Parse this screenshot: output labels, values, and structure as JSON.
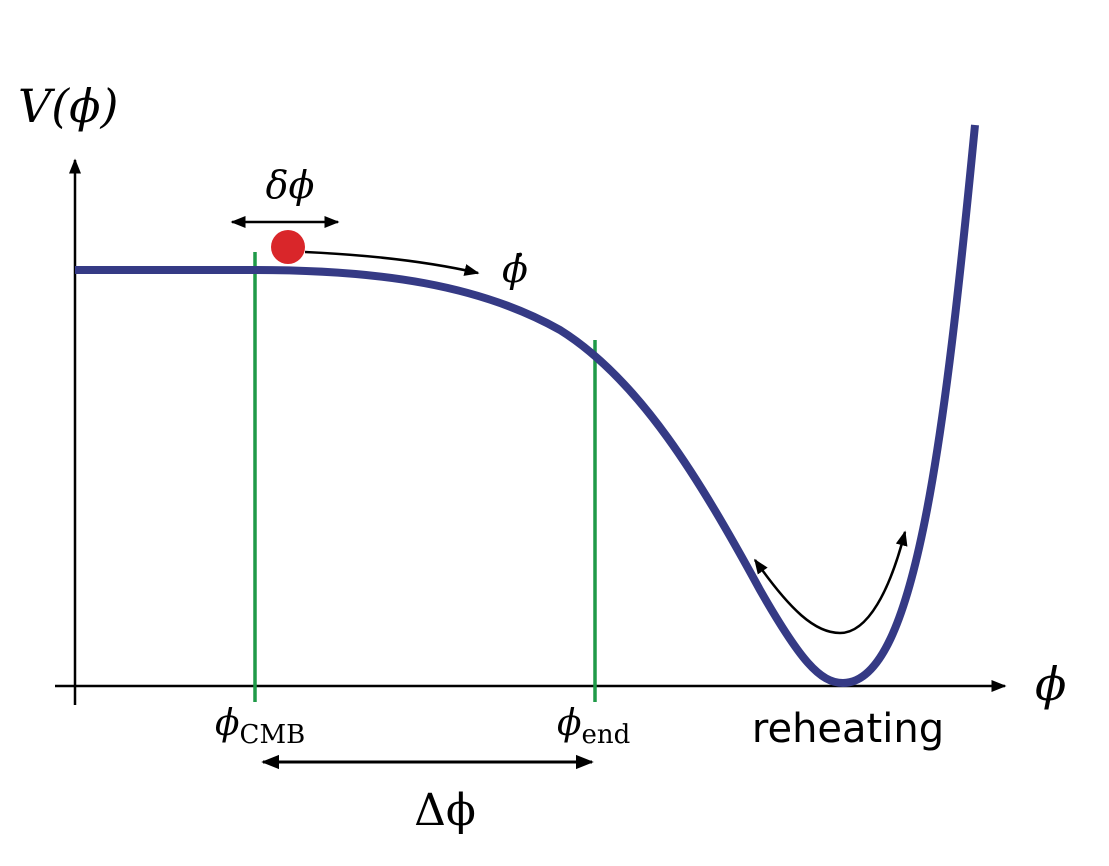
{
  "axes": {
    "y": "V(ϕ)",
    "x": "ϕ"
  },
  "markers": [
    {
      "symbol": "ϕ",
      "subscript": "CMB"
    },
    {
      "symbol": "ϕ",
      "subscript": "end"
    }
  ],
  "annotations": {
    "field_fluctuation": "δϕ",
    "field_velocity": "ϕ̇",
    "field_range": "Δϕ",
    "reheating": "reheating"
  }
}
